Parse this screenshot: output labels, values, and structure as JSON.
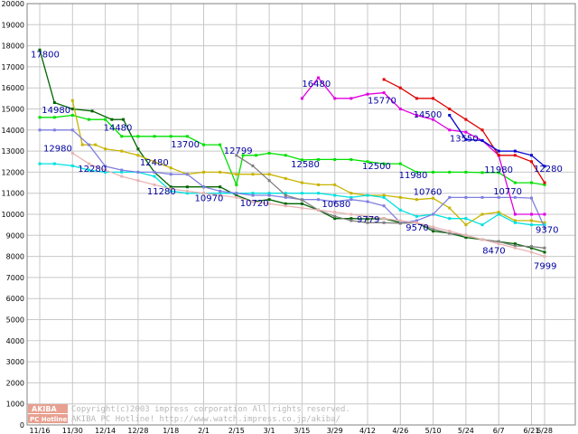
{
  "chart_data": {
    "type": "line",
    "grid": true,
    "legend": "none",
    "ylim": [
      0,
      20000
    ],
    "yticks": [
      "0",
      "1000",
      "2000",
      "3000",
      "4000",
      "5000",
      "6000",
      "7000",
      "8000",
      "9000",
      "10000",
      "11000",
      "12000",
      "13000",
      "14000",
      "15000",
      "16000",
      "17000",
      "18000",
      "19000",
      "20000"
    ],
    "x_tick_labels": [
      "11/16",
      "11/30",
      "12/14",
      "12/28",
      "1/18",
      "2/1",
      "2/15",
      "3/1",
      "3/15",
      "3/29",
      "4/12",
      "4/26",
      "5/10",
      "5/24",
      "6/7",
      "6/21",
      "6/28"
    ],
    "x_tick_index": [
      0,
      1,
      2,
      3,
      4,
      5,
      6,
      7,
      8,
      9,
      10,
      11,
      12,
      13,
      14,
      15,
      15.4
    ],
    "series": [
      {
        "color": "#006400",
        "x": [
          0,
          0.45,
          1,
          1.6,
          2.2,
          2.55,
          3,
          3.5,
          4,
          4.5,
          5,
          5.5,
          6,
          6.5,
          7,
          7.5,
          8,
          8.5,
          9,
          9.5,
          10,
          10.5,
          11,
          11.5,
          12,
          12.5,
          13,
          13.5,
          14,
          14.5,
          15,
          15.4
        ],
        "y": [
          17800,
          15300,
          15000,
          14900,
          14500,
          14500,
          13100,
          12000,
          11300,
          11300,
          11300,
          11300,
          10900,
          10600,
          10700,
          10500,
          10500,
          10200,
          9800,
          9800,
          9779,
          9800,
          9600,
          9600,
          9200,
          9100,
          8900,
          8800,
          8700,
          8600,
          8400,
          8200
        ]
      },
      {
        "color": "#00e000",
        "x": [
          0,
          0.45,
          1,
          1.5,
          2,
          2.5,
          3,
          3.5,
          4,
          4.5,
          5,
          5.5,
          6,
          6.2,
          6.6,
          7,
          7.5,
          8,
          8.5,
          9,
          9.5,
          10,
          10.5,
          11,
          11.5,
          12,
          12.5,
          13,
          13.5,
          14,
          14.5,
          15,
          15.4
        ],
        "y": [
          14600,
          14600,
          14700,
          14500,
          14500,
          13700,
          13700,
          13700,
          13700,
          13700,
          13300,
          13300,
          11400,
          12799,
          12800,
          12900,
          12800,
          12580,
          12600,
          12600,
          12600,
          12500,
          12400,
          12400,
          12000,
          12000,
          12000,
          12000,
          11980,
          11980,
          11500,
          11500,
          11400
        ]
      },
      {
        "color": "#c8b400",
        "x": [
          1,
          1.3,
          1.7,
          2,
          2.5,
          3,
          3.5,
          4,
          4.5,
          5,
          5.5,
          6,
          6.5,
          7,
          7.5,
          8,
          8.5,
          9,
          9.5,
          10,
          10.5,
          11,
          11.5,
          12,
          12.5,
          13,
          13.5,
          14,
          14.5,
          15,
          15.4
        ],
        "y": [
          15400,
          13300,
          13300,
          13100,
          13000,
          12800,
          12500,
          12200,
          11900,
          12000,
          12000,
          11900,
          11900,
          11900,
          11700,
          11500,
          11400,
          11400,
          11000,
          10900,
          10900,
          10800,
          10700,
          10760,
          10300,
          9500,
          10000,
          10100,
          9700,
          9700,
          9600
        ]
      },
      {
        "color": "#00e0e0",
        "x": [
          0,
          0.45,
          1,
          1.5,
          2,
          2.5,
          3,
          3.5,
          4,
          4.5,
          5,
          5.5,
          6,
          6.5,
          7,
          7.5,
          8,
          8.5,
          9,
          9.5,
          10,
          10.5,
          11,
          11.5,
          12,
          12.5,
          13,
          13.5,
          14,
          14.5,
          15,
          15.4
        ],
        "y": [
          12400,
          12400,
          12300,
          12100,
          12000,
          12000,
          12000,
          11800,
          11100,
          11000,
          11000,
          11000,
          11000,
          11000,
          11000,
          11000,
          11000,
          11000,
          10900,
          10800,
          10900,
          10800,
          10200,
          9900,
          10000,
          9800,
          9800,
          9500,
          10000,
          9600,
          9500,
          9500
        ]
      },
      {
        "color": "#8080e0",
        "x": [
          0,
          0.45,
          1,
          1.5,
          2,
          2.5,
          3,
          3.5,
          4,
          4.5,
          5,
          5.5,
          6,
          6.5,
          7,
          7.5,
          8,
          8.5,
          9,
          9.5,
          10,
          10.5,
          11,
          11.5,
          12,
          12.5,
          13,
          13.5,
          14,
          14.5,
          15,
          15.4
        ],
        "y": [
          14000,
          14000,
          14000,
          13300,
          12280,
          12100,
          12000,
          12000,
          11900,
          11900,
          11300,
          11100,
          11000,
          10900,
          10900,
          10800,
          10700,
          10700,
          10600,
          10700,
          10600,
          10400,
          9600,
          9700,
          10000,
          10800,
          10800,
          10800,
          10800,
          10800,
          10770,
          9370
        ]
      },
      {
        "color": "#808080",
        "x": [
          6,
          6.5,
          7,
          7.5,
          8,
          8.5,
          9,
          9.5,
          10,
          10.5,
          11,
          11.5,
          12,
          12.5,
          13,
          13.5,
          14,
          14.5,
          15,
          15.4
        ],
        "y": [
          12800,
          12300,
          11600,
          10900,
          10680,
          10200,
          9900,
          9700,
          9600,
          9600,
          9570,
          9600,
          9300,
          9100,
          9000,
          8800,
          8700,
          8500,
          8470,
          8400
        ]
      },
      {
        "color": "#e8b4b4",
        "x": [
          1,
          1.5,
          2,
          2.5,
          3,
          3.5,
          4,
          4.5,
          5,
          5.5,
          6,
          6.5,
          7,
          7.5,
          8,
          8.5,
          9,
          9.5,
          10,
          10.5,
          11,
          11.5,
          12,
          12.5,
          13,
          13.5,
          14,
          14.5,
          15,
          15.4
        ],
        "y": [
          12900,
          12400,
          12100,
          11800,
          11600,
          11400,
          11200,
          11100,
          11000,
          10900,
          10800,
          10600,
          10500,
          10400,
          10300,
          10200,
          10100,
          10000,
          9900,
          9800,
          9700,
          9600,
          9400,
          9200,
          9000,
          8800,
          8600,
          8400,
          8200,
          7999
        ]
      },
      {
        "color": "#e000e0",
        "x": [
          8,
          8.5,
          9,
          9.5,
          10,
          10.5,
          11,
          11.5,
          12,
          12.5,
          13,
          13.5,
          14,
          14.5,
          15,
          15.4
        ],
        "y": [
          15500,
          16480,
          15500,
          15500,
          15700,
          15770,
          15000,
          14700,
          14500,
          14000,
          13900,
          13500,
          12800,
          10000,
          10000,
          10000
        ]
      },
      {
        "color": "#e00000",
        "x": [
          10.5,
          11,
          11.5,
          12,
          12.5,
          13,
          13.5,
          14,
          14.5,
          15,
          15.4
        ],
        "y": [
          16400,
          16000,
          15500,
          15500,
          15000,
          14500,
          14000,
          12800,
          12800,
          12500,
          11500
        ]
      },
      {
        "color": "#0000d0",
        "x": [
          12.5,
          13,
          13.5,
          14,
          14.5,
          15,
          15.4
        ],
        "y": [
          14700,
          13550,
          13500,
          13000,
          13000,
          12800,
          12280
        ]
      }
    ],
    "annotations": [
      {
        "text": "17800",
        "color": "#0000a0",
        "x": 0,
        "y": 17800,
        "dx": -16,
        "dy": 8
      },
      {
        "text": "14980",
        "color": "#0000a0",
        "x": 1,
        "y": 14980,
        "dx": -34,
        "dy": 4
      },
      {
        "text": "14480",
        "color": "#0000a0",
        "x": 2,
        "y": 14480,
        "dx": -2,
        "dy": 12
      },
      {
        "text": "12980",
        "color": "#0000a0",
        "x": 0,
        "y": 12980,
        "dx": 4,
        "dy": 0
      },
      {
        "text": "12280",
        "color": "#0000a0",
        "x": 1,
        "y": 12280,
        "dx": 6,
        "dy": 6
      },
      {
        "text": "12480",
        "color": "#0000a0",
        "x": 3,
        "y": 12480,
        "dx": 2,
        "dy": 4
      },
      {
        "text": "11280",
        "color": "#0000a0",
        "x": 3,
        "y": 11280,
        "dx": 10,
        "dy": 8
      },
      {
        "text": "13700",
        "color": "#0000a0",
        "x": 4,
        "y": 13700,
        "dx": 0,
        "dy": 12
      },
      {
        "text": "10970",
        "color": "#0000a0",
        "x": 5,
        "y": 10970,
        "dx": -10,
        "dy": 8
      },
      {
        "text": "12799",
        "color": "#0000a0",
        "x": 6,
        "y": 12799,
        "dx": -14,
        "dy": -2
      },
      {
        "text": "10720",
        "color": "#0000a0",
        "x": 6,
        "y": 10720,
        "dx": 4,
        "dy": 8
      },
      {
        "text": "12580",
        "color": "#0000a0",
        "x": 7,
        "y": 12580,
        "dx": 24,
        "dy": 8
      },
      {
        "text": "16480",
        "color": "#0000a0",
        "x": 8,
        "y": 16480,
        "dx": 0,
        "dy": 10
      },
      {
        "text": "10680",
        "color": "#0000a0",
        "x": 8,
        "y": 10680,
        "dx": 22,
        "dy": 8
      },
      {
        "text": "15770",
        "color": "#0000a0",
        "x": 10,
        "y": 15770,
        "dx": 0,
        "dy": 12
      },
      {
        "text": "12500",
        "color": "#0000a0",
        "x": 10,
        "y": 12500,
        "dx": -6,
        "dy": 8
      },
      {
        "text": "9779",
        "color": "#0000a0",
        "x": 10,
        "y": 9779,
        "dx": -12,
        "dy": 4
      },
      {
        "text": "14500",
        "color": "#0000a0",
        "x": 12,
        "y": 14500,
        "dx": -22,
        "dy": -2
      },
      {
        "text": "11980",
        "color": "#0000a0",
        "x": 12,
        "y": 11980,
        "dx": -38,
        "dy": 6
      },
      {
        "text": "9570",
        "color": "#0000a0",
        "x": 11,
        "y": 9570,
        "dx": 6,
        "dy": 8
      },
      {
        "text": "10760",
        "color": "#0000a0",
        "x": 12,
        "y": 10760,
        "dx": -22,
        "dy": -4
      },
      {
        "text": "13550",
        "color": "#0000a0",
        "x": 13,
        "y": 13550,
        "dx": -18,
        "dy": 2
      },
      {
        "text": "11980",
        "color": "#0000a0",
        "x": 14,
        "y": 11980,
        "dx": -16,
        "dy": 0
      },
      {
        "text": "10770",
        "color": "#0000a0",
        "x": 14,
        "y": 10770,
        "dx": -6,
        "dy": -4
      },
      {
        "text": "8470",
        "color": "#0000a0",
        "x": 14,
        "y": 8470,
        "dx": -18,
        "dy": 8
      },
      {
        "text": "12280",
        "color": "#0000a0",
        "x": 15.4,
        "y": 12280,
        "dx": -12,
        "dy": 6
      },
      {
        "text": "9370",
        "color": "#0000a0",
        "x": 15.4,
        "y": 9370,
        "dx": -10,
        "dy": 6
      },
      {
        "text": "7999",
        "color": "#0000a0",
        "x": 15.4,
        "y": 7999,
        "dx": -12,
        "dy": 14
      }
    ]
  },
  "watermark": {
    "logo_line1": "AKIBA",
    "logo_line2": "PC Hotline!",
    "line1": "Copyright(c)2003 impress corporation All rights reserved.",
    "line2": "AKIBA PC Hotline!  http://www.watch.impress.co.jp/akiba/",
    "logo_color": "#e8a090"
  }
}
